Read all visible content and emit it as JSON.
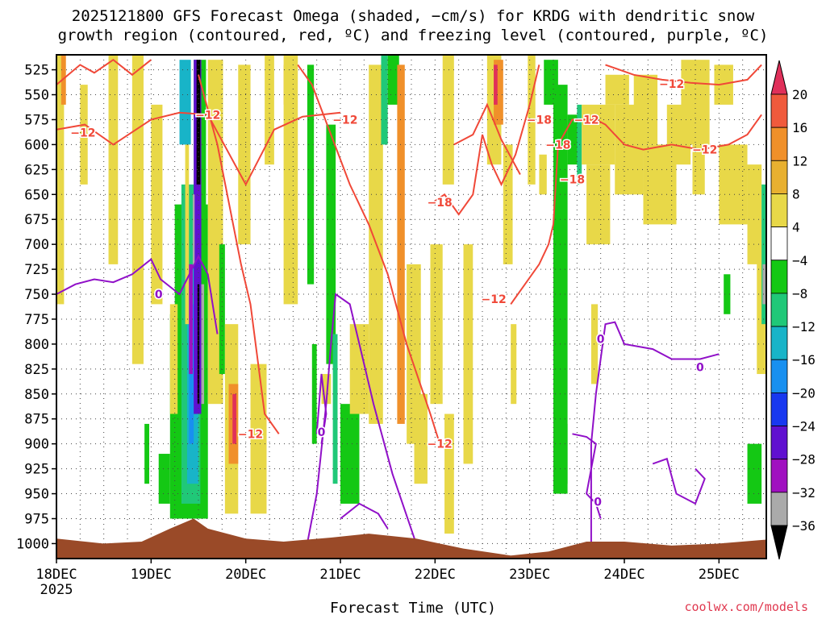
{
  "title_line1": "2025121800 GFS Forecast Omega (shaded, −cm/s) for KRDG with dendritic snow",
  "title_line2": "growth region (contoured, red, ºC) and freezing level (contoured, purple, ºC)",
  "credit": "coolwx.com/models",
  "chart_data": {
    "type": "heatmap",
    "xlabel": "Forecast Time (UTC)",
    "ylabel": "",
    "x_ticks": [
      "18DEC",
      "19DEC",
      "20DEC",
      "21DEC",
      "22DEC",
      "23DEC",
      "24DEC",
      "25DEC"
    ],
    "x_year_label": "2025",
    "x_range_days": [
      0,
      7.5
    ],
    "y_ticks": [
      525,
      550,
      575,
      600,
      625,
      650,
      675,
      700,
      725,
      750,
      775,
      800,
      825,
      850,
      875,
      900,
      925,
      950,
      975,
      1000
    ],
    "y_range_hpa": [
      510,
      1015
    ],
    "grid": true,
    "colorbar": {
      "labels": [
        "20",
        "16",
        "12",
        "8",
        "4",
        "−4",
        "−8",
        "−12",
        "−16",
        "−20",
        "−24",
        "−28",
        "−32",
        "−36"
      ],
      "colors": [
        "#e0305a",
        "#f05a3c",
        "#f0902a",
        "#e8b030",
        "#e8d848",
        "#ffffff",
        "#14c814",
        "#20c878",
        "#18b4c8",
        "#1890f0",
        "#1838f0",
        "#6010d0",
        "#a010c0",
        "#aaaaaa",
        "#000000"
      ]
    },
    "contour_labels_red": [
      "−12",
      "−12",
      "−12",
      "−12",
      "−18",
      "−18",
      "−12",
      "−12",
      "−18",
      "−12",
      "−12",
      "−18",
      "−12"
    ],
    "contour_labels_purple": [
      "0",
      "0",
      "0",
      "0",
      "0"
    ],
    "freezing_level_series": {
      "name": "0",
      "x_days": [
        0,
        0.2,
        0.4,
        0.6,
        0.8,
        1.0,
        1.1,
        1.3,
        1.5,
        1.6,
        1.7
      ],
      "y_hpa": [
        750,
        740,
        735,
        738,
        730,
        715,
        735,
        750,
        712,
        730,
        790
      ]
    },
    "dgz_top_series": {
      "name": "−12",
      "x_days": [
        0,
        0.3,
        0.6,
        1.0,
        1.3,
        1.6,
        2.0,
        2.3,
        2.6,
        3.0
      ],
      "y_hpa": [
        585,
        580,
        600,
        575,
        568,
        570,
        640,
        585,
        572,
        568
      ]
    }
  }
}
